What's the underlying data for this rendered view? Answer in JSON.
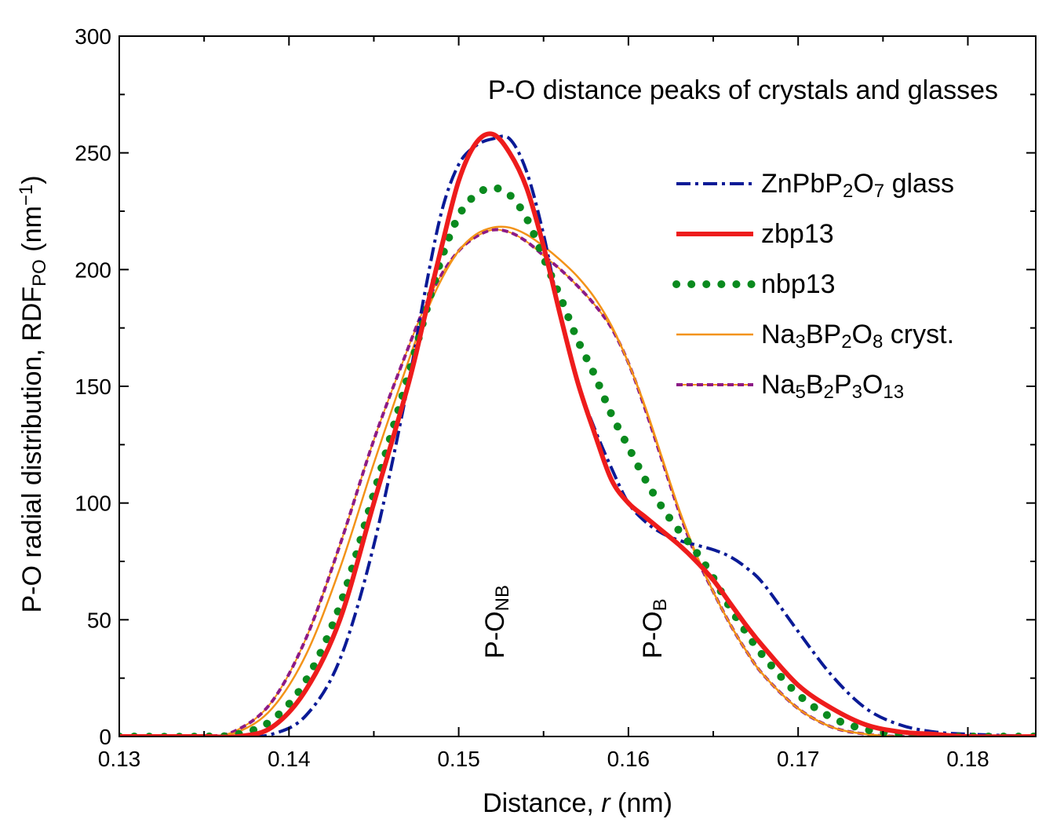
{
  "chart_data": {
    "type": "line",
    "title": "P-O distance peaks of crystals and glasses",
    "xlabel": {
      "prefix": "Distance, ",
      "var": "r",
      "suffix": " (nm)"
    },
    "ylabel": {
      "prefix": "P-O radial distribution, RDF",
      "sub": "PO",
      "unit_open": " (nm",
      "sup": "−1",
      "unit_close": ")"
    },
    "xlim": [
      0.13,
      0.184
    ],
    "ylim": [
      0,
      300
    ],
    "xticks": [
      0.13,
      0.14,
      0.15,
      0.16,
      0.17,
      0.18
    ],
    "xtick_labels": [
      "0.13",
      "0.14",
      "0.15",
      "0.16",
      "0.17",
      "0.18"
    ],
    "yticks": [
      0,
      50,
      100,
      150,
      200,
      250,
      300
    ],
    "ytick_labels": [
      "0",
      "50",
      "100",
      "150",
      "200",
      "250",
      "300"
    ],
    "grid": false,
    "legend_position": "top-right",
    "annotations": [
      {
        "main": "P-O",
        "sub": "NB",
        "x": 0.1521,
        "y": 30
      },
      {
        "main": "P-O",
        "sub": "B",
        "x": 0.1614,
        "y": 30
      }
    ],
    "series": [
      {
        "name": "ZnPbP2O7 glass",
        "label_parts": [
          [
            "ZnPbP",
            ""
          ],
          [
            "2",
            "sub"
          ],
          [
            "O",
            ""
          ],
          [
            "7",
            "sub"
          ],
          [
            " glass",
            ""
          ]
        ],
        "color": "#0a1a96",
        "style": "dashdot",
        "x": [
          0.13,
          0.135,
          0.137,
          0.139,
          0.141,
          0.143,
          0.145,
          0.147,
          0.148,
          0.149,
          0.15,
          0.151,
          0.152,
          0.153,
          0.154,
          0.155,
          0.156,
          0.157,
          0.158,
          0.159,
          0.16,
          0.161,
          0.162,
          0.163,
          0.164,
          0.165,
          0.166,
          0.167,
          0.168,
          0.17,
          0.172,
          0.174,
          0.176,
          0.178,
          0.18,
          0.184
        ],
        "y": [
          0,
          0,
          0,
          1,
          9,
          33,
          82,
          150,
          190,
          225,
          245,
          253,
          256,
          256,
          242,
          215,
          180,
          152,
          132,
          115,
          100,
          92,
          87,
          84,
          82,
          80,
          77,
          72,
          65,
          45,
          26,
          12,
          5,
          2,
          1,
          0
        ]
      },
      {
        "name": "zbp13",
        "label_parts": [
          [
            "zbp13",
            ""
          ]
        ],
        "color": "#ee1c1c",
        "style": "solid-thick",
        "x": [
          0.13,
          0.135,
          0.137,
          0.139,
          0.141,
          0.143,
          0.145,
          0.147,
          0.148,
          0.149,
          0.15,
          0.151,
          0.152,
          0.153,
          0.154,
          0.155,
          0.156,
          0.157,
          0.158,
          0.159,
          0.16,
          0.161,
          0.162,
          0.163,
          0.164,
          0.165,
          0.166,
          0.167,
          0.168,
          0.17,
          0.172,
          0.174,
          0.176,
          0.178,
          0.18,
          0.184
        ],
        "y": [
          0,
          0,
          0,
          4,
          20,
          50,
          100,
          150,
          180,
          210,
          238,
          254,
          258,
          250,
          235,
          210,
          180,
          152,
          130,
          110,
          100,
          94,
          88,
          82,
          75,
          67,
          57,
          47,
          38,
          22,
          12,
          5,
          2,
          1,
          0,
          0
        ]
      },
      {
        "name": "nbp13",
        "label_parts": [
          [
            "nbp13",
            ""
          ]
        ],
        "color": "#0a8a1e",
        "style": "dotted",
        "x": [
          0.13,
          0.135,
          0.137,
          0.139,
          0.141,
          0.143,
          0.145,
          0.147,
          0.148,
          0.149,
          0.15,
          0.151,
          0.152,
          0.153,
          0.154,
          0.155,
          0.156,
          0.157,
          0.158,
          0.159,
          0.16,
          0.161,
          0.162,
          0.163,
          0.164,
          0.165,
          0.166,
          0.167,
          0.168,
          0.17,
          0.172,
          0.174,
          0.176,
          0.178,
          0.18,
          0.184
        ],
        "y": [
          0,
          0,
          1,
          7,
          24,
          56,
          104,
          154,
          180,
          205,
          223,
          232,
          235,
          232,
          222,
          205,
          188,
          170,
          155,
          138,
          124,
          110,
          98,
          88,
          79,
          68,
          55,
          44,
          34,
          18,
          8,
          3,
          1,
          0,
          0,
          0
        ]
      },
      {
        "name": "Na3BP2O8 cryst.",
        "label_parts": [
          [
            "Na",
            ""
          ],
          [
            "3",
            "sub"
          ],
          [
            "BP",
            ""
          ],
          [
            "2",
            "sub"
          ],
          [
            "O",
            ""
          ],
          [
            "8",
            "sub"
          ],
          [
            " cryst.",
            ""
          ]
        ],
        "color": "#f39318",
        "style": "solid",
        "x": [
          0.13,
          0.135,
          0.137,
          0.139,
          0.141,
          0.143,
          0.145,
          0.147,
          0.148,
          0.149,
          0.15,
          0.151,
          0.152,
          0.153,
          0.154,
          0.155,
          0.156,
          0.157,
          0.158,
          0.159,
          0.16,
          0.161,
          0.162,
          0.163,
          0.164,
          0.165,
          0.166,
          0.167,
          0.168,
          0.17,
          0.172,
          0.174,
          0.176,
          0.178,
          0.18,
          0.184
        ],
        "y": [
          0,
          0,
          2,
          12,
          35,
          72,
          117,
          160,
          180,
          196,
          208,
          215,
          218,
          218,
          215,
          210,
          204,
          197,
          188,
          176,
          160,
          141,
          119,
          97,
          78,
          62,
          48,
          36,
          26,
          12,
          4,
          1,
          0,
          0,
          0,
          0
        ]
      },
      {
        "name": "Na5B2P3O13",
        "label_parts": [
          [
            "Na",
            ""
          ],
          [
            "5",
            "sub"
          ],
          [
            "B",
            ""
          ],
          [
            "2",
            "sub"
          ],
          [
            "P",
            ""
          ],
          [
            "3",
            "sub"
          ],
          [
            "O",
            ""
          ],
          [
            "13",
            "sub"
          ]
        ],
        "color": "#8c1a86",
        "style": "dashed",
        "x": [
          0.13,
          0.135,
          0.137,
          0.139,
          0.141,
          0.143,
          0.145,
          0.147,
          0.148,
          0.149,
          0.15,
          0.151,
          0.152,
          0.153,
          0.154,
          0.155,
          0.156,
          0.157,
          0.158,
          0.159,
          0.16,
          0.161,
          0.162,
          0.163,
          0.164,
          0.165,
          0.166,
          0.167,
          0.168,
          0.17,
          0.172,
          0.174,
          0.176,
          0.178,
          0.18,
          0.184
        ],
        "y": [
          0,
          0,
          3,
          15,
          42,
          82,
          127,
          166,
          184,
          198,
          208,
          214,
          217,
          216,
          212,
          206,
          200,
          193,
          185,
          175,
          160,
          140,
          118,
          96,
          77,
          62,
          48,
          36,
          26,
          12,
          4,
          1,
          0,
          0,
          0,
          0
        ]
      }
    ]
  }
}
